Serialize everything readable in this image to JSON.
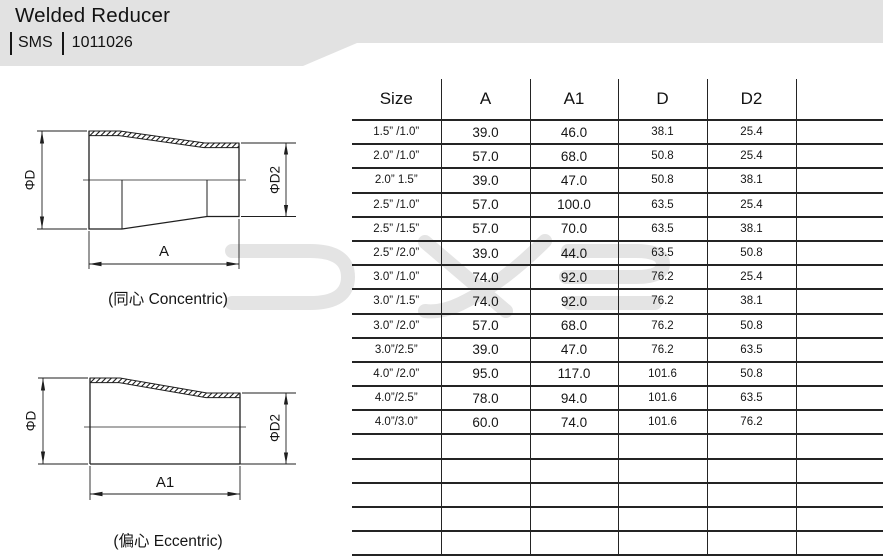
{
  "header": {
    "title": "Welded Reducer",
    "standard": "SMS",
    "code": "1011026"
  },
  "watermark": {
    "text": "DYE",
    "color": "#e4e4e4"
  },
  "drawings": {
    "concentric": {
      "caption": "(同心 Concentric)",
      "dim_d": "ΦD",
      "dim_d2": "ΦD2",
      "dim_len": "A"
    },
    "eccentric": {
      "caption": "(偏心 Eccentric)",
      "dim_d": "ΦD",
      "dim_d2": "ΦD2",
      "dim_len": "A1"
    }
  },
  "table": {
    "columns": [
      "Size",
      "A",
      "A1",
      "D",
      "D2",
      ""
    ],
    "rows": [
      {
        "size": "1.5” /1.0”",
        "a": "39.0",
        "a1": "46.0",
        "d": "38.1",
        "d2": "25.4"
      },
      {
        "size": "2.0” /1.0”",
        "a": "57.0",
        "a1": "68.0",
        "d": "50.8",
        "d2": "25.4"
      },
      {
        "size": "2.0” 1.5”",
        "a": "39.0",
        "a1": "47.0",
        "d": "50.8",
        "d2": "38.1"
      },
      {
        "size": "2.5” /1.0”",
        "a": "57.0",
        "a1": "100.0",
        "d": "63.5",
        "d2": "25.4"
      },
      {
        "size": "2.5” /1.5”",
        "a": "57.0",
        "a1": "70.0",
        "d": "63.5",
        "d2": "38.1"
      },
      {
        "size": "2.5” /2.0”",
        "a": "39.0",
        "a1": "44.0",
        "d": "63.5",
        "d2": "50.8"
      },
      {
        "size": "3.0” /1.0”",
        "a": "74.0",
        "a1": "92.0",
        "d": "76.2",
        "d2": "25.4"
      },
      {
        "size": "3.0” /1.5”",
        "a": "74.0",
        "a1": "92.0",
        "d": "76.2",
        "d2": "38.1"
      },
      {
        "size": "3.0” /2.0”",
        "a": "57.0",
        "a1": "68.0",
        "d": "76.2",
        "d2": "50.8"
      },
      {
        "size": "3.0”/2.5”",
        "a": "39.0",
        "a1": "47.0",
        "d": "76.2",
        "d2": "63.5"
      },
      {
        "size": "4.0” /2.0”",
        "a": "95.0",
        "a1": "117.0",
        "d": "101.6",
        "d2": "50.8"
      },
      {
        "size": "4.0”/2.5”",
        "a": "78.0",
        "a1": "94.0",
        "d": "101.6",
        "d2": "63.5"
      },
      {
        "size": "4.0”/3.0”",
        "a": "60.0",
        "a1": "74.0",
        "d": "101.6",
        "d2": "76.2"
      }
    ],
    "empty_rows": 5
  }
}
